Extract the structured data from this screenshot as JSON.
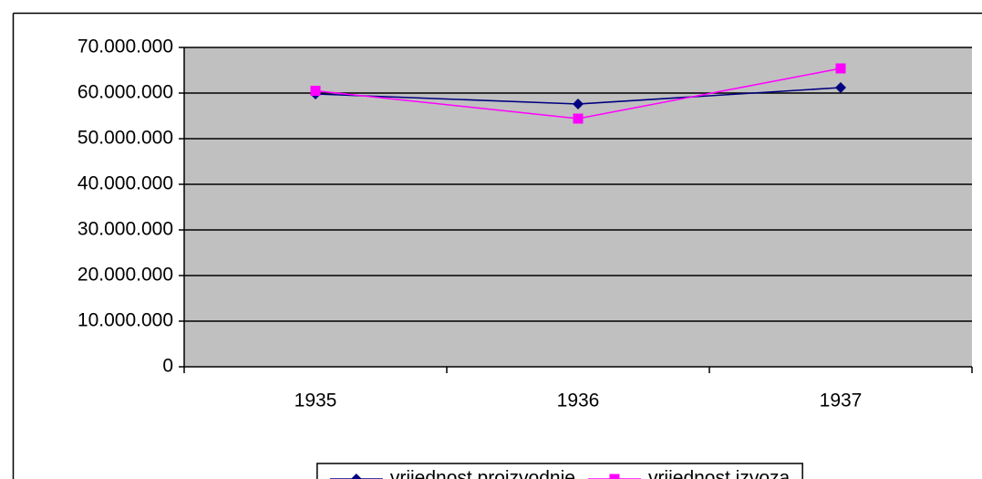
{
  "chart_data": {
    "type": "line",
    "categories": [
      "1935",
      "1936",
      "1937"
    ],
    "series": [
      {
        "name": "vrijednost proizvodnje",
        "color": "#000080",
        "marker": "diamond",
        "values": [
          59800000,
          57600000,
          61200000
        ]
      },
      {
        "name": "vrijednost izvoza",
        "color": "#ff00ff",
        "marker": "square",
        "values": [
          60500000,
          54400000,
          65400000
        ]
      }
    ],
    "ylim": [
      0,
      70000000
    ],
    "yticks": [
      {
        "value": 0,
        "label": "0"
      },
      {
        "value": 10000000,
        "label": "10.000.000"
      },
      {
        "value": 20000000,
        "label": "20.000.000"
      },
      {
        "value": 30000000,
        "label": "30.000.000"
      },
      {
        "value": 40000000,
        "label": "40.000.000"
      },
      {
        "value": 50000000,
        "label": "50.000.000"
      },
      {
        "value": 60000000,
        "label": "60.000.000"
      },
      {
        "value": 70000000,
        "label": "70.000.000"
      }
    ],
    "grid": true,
    "legend": "bottom"
  }
}
